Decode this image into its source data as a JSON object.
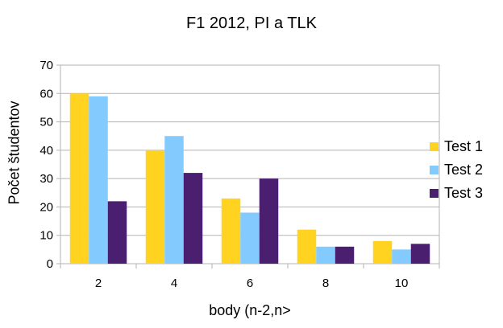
{
  "chart_data": {
    "type": "bar",
    "title": "F1 2012, PI a TLK",
    "xlabel": "body (n-2,n>",
    "ylabel": "Počet študentov",
    "categories": [
      "2",
      "4",
      "6",
      "8",
      "10"
    ],
    "series": [
      {
        "name": "Test 1",
        "color": "#FFD320",
        "values": [
          60,
          40,
          23,
          12,
          8
        ]
      },
      {
        "name": "Test 2",
        "color": "#83CAFF",
        "values": [
          59,
          45,
          18,
          6,
          5
        ]
      },
      {
        "name": "Test 3",
        "color": "#4B1F6F",
        "values": [
          22,
          32,
          30,
          6,
          7
        ]
      }
    ],
    "ylim": [
      0,
      70
    ],
    "yticks": [
      0,
      10,
      20,
      30,
      40,
      50,
      60,
      70
    ],
    "grid": true,
    "legend_position": "right"
  }
}
